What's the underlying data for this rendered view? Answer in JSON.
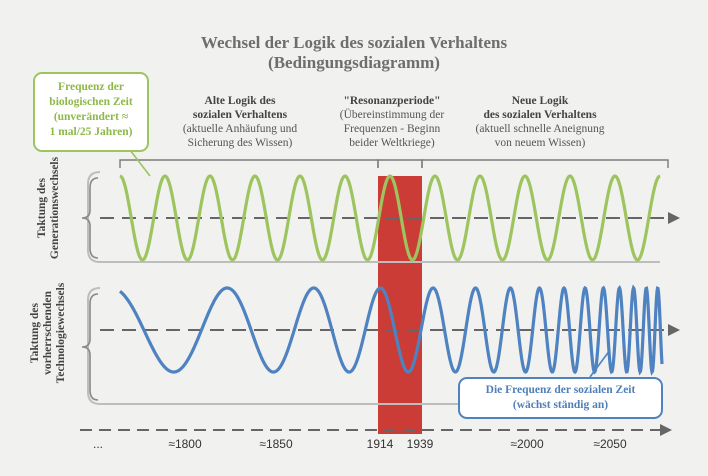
{
  "title": {
    "line1": "Wechsel der Logik des sozialen Verhaltens",
    "line2": "(Bedingungsdiagramm)"
  },
  "callout_bio": {
    "lines": [
      "Frequenz der",
      "biologischen Zeit",
      "(unverändert ≈",
      "1 mal/25 Jahren)"
    ],
    "color": "#8fb84a"
  },
  "callout_social": {
    "lines": [
      "Die Frequenz der sozialen Zeit",
      "(wächst ständig an)"
    ],
    "color": "#4f7fb8"
  },
  "headers": {
    "old": {
      "bold": [
        "Alte Logik des",
        "sozialen Verhaltens"
      ],
      "sub": [
        "(aktuelle Anhäufung und",
        "Sicherung des Wissen)"
      ]
    },
    "resonance": {
      "bold": [
        "\"Resonanzperiode\""
      ],
      "sub": [
        "(Übereinstimmung der",
        "Frequenzen - Beginn",
        "beider Weltkriege)"
      ]
    },
    "new": {
      "bold": [
        "Neue Logik",
        "des sozialen Verhaltens"
      ],
      "sub": [
        "(aktuell schnelle Aneignung",
        "von neuem Wissen)"
      ]
    }
  },
  "row_labels": {
    "top": [
      "Taktung des",
      "Generationswechsels"
    ],
    "bottom": [
      "Taktung des",
      "vorherrschenden",
      "Technologiewechsels"
    ]
  },
  "timeline": {
    "ticks": [
      "...",
      "≈1800",
      "≈1850",
      "1914",
      "1939",
      "≈2000",
      "≈2050"
    ]
  },
  "colors": {
    "green_wave": "#9dc45f",
    "blue_wave": "#4e82c0",
    "resonance_band": "#c8322c",
    "axis": "#666666",
    "bracket": "#7a7a7a"
  }
}
